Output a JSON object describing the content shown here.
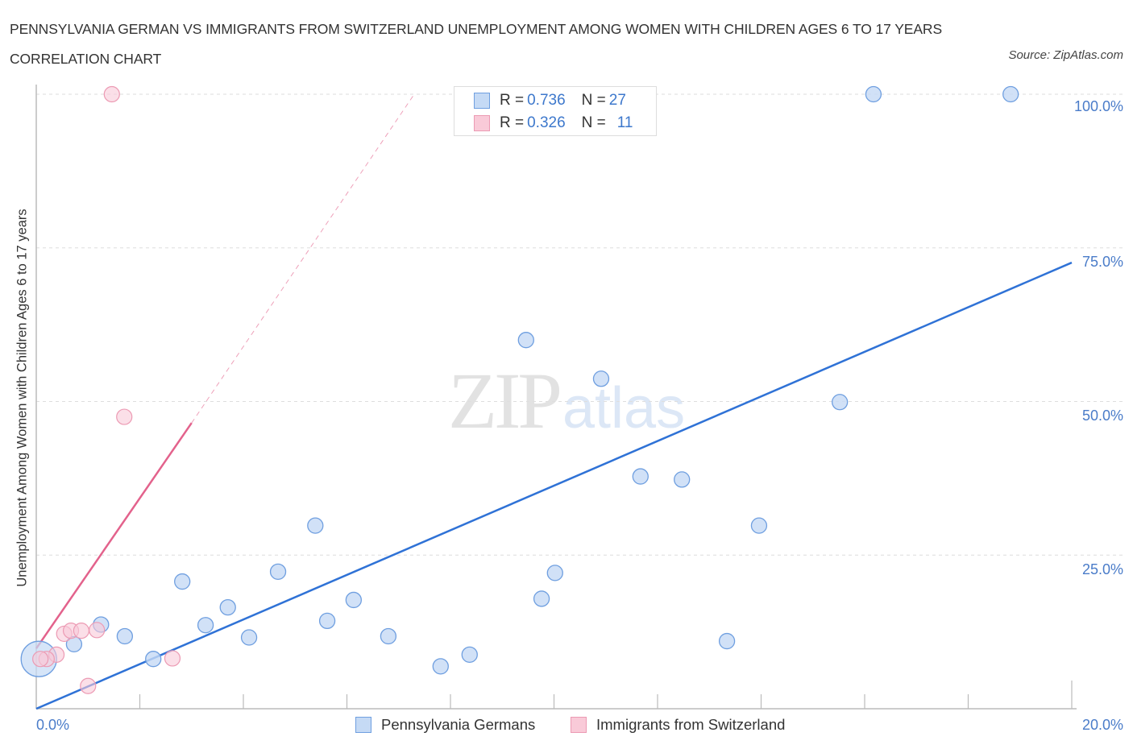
{
  "title": "PENNSYLVANIA GERMAN VS IMMIGRANTS FROM SWITZERLAND UNEMPLOYMENT AMONG WOMEN WITH CHILDREN AGES 6 TO 17 YEARS CORRELATION CHART",
  "source": "Source: ZipAtlas.com",
  "watermark": {
    "zip": "ZIP",
    "atlas": "atlas"
  },
  "legend_top": {
    "rows": [
      {
        "r_label": "R = ",
        "r_value": "0.736",
        "n_label": "N = ",
        "n_value": "27"
      },
      {
        "r_label": "R = ",
        "r_value": "0.326",
        "n_label": "N = ",
        "n_value": "11"
      }
    ]
  },
  "legend_bottom": [
    {
      "label": "Pennsylvania Germans"
    },
    {
      "label": "Immigrants from Switzerland"
    }
  ],
  "colors": {
    "blue_fill": "#c5daf5",
    "blue_stroke": "#6f9fe0",
    "blue_line": "#2f72d6",
    "pink_fill": "#f9cad8",
    "pink_stroke": "#ec9ab3",
    "pink_line": "#e3628c",
    "tick_label": "#4a7cc9"
  },
  "chart_data": {
    "type": "scatter",
    "title": "PENNSYLVANIA GERMAN VS IMMIGRANTS FROM SWITZERLAND UNEMPLOYMENT AMONG WOMEN WITH CHILDREN AGES 6 TO 17 YEARS CORRELATION CHART",
    "xlabel": "",
    "ylabel": "Unemployment Among Women with Children Ages 6 to 17 years",
    "xlim": [
      0,
      20
    ],
    "ylim": [
      0,
      100
    ],
    "x_tick_labels": [
      "0.0%",
      "20.0%"
    ],
    "y_tick_labels": [
      "100.0%",
      "75.0%",
      "50.0%",
      "25.0%"
    ],
    "y_ticks": [
      100,
      75,
      50,
      25
    ],
    "grid": "horizontal dashed",
    "legend_position": "bottom",
    "series": [
      {
        "name": "Pennsylvania Germans",
        "R": 0.736,
        "N": 27,
        "points": [
          [
            16.17,
            100.0
          ],
          [
            18.82,
            100.0
          ],
          [
            9.46,
            60.0
          ],
          [
            10.91,
            53.7
          ],
          [
            15.52,
            49.9
          ],
          [
            11.67,
            37.8
          ],
          [
            12.47,
            37.3
          ],
          [
            5.39,
            29.8
          ],
          [
            13.96,
            29.8
          ],
          [
            2.82,
            20.7
          ],
          [
            4.67,
            22.3
          ],
          [
            10.02,
            22.1
          ],
          [
            9.76,
            17.9
          ],
          [
            6.13,
            17.7
          ],
          [
            3.7,
            16.5
          ],
          [
            5.62,
            14.3
          ],
          [
            3.27,
            13.6
          ],
          [
            1.25,
            13.7
          ],
          [
            1.71,
            11.8
          ],
          [
            4.11,
            11.6
          ],
          [
            6.8,
            11.8
          ],
          [
            13.34,
            11.0
          ],
          [
            0.73,
            10.5
          ],
          [
            2.26,
            8.1
          ],
          [
            8.37,
            8.8
          ],
          [
            7.81,
            6.9
          ],
          [
            0.05,
            8.1
          ]
        ],
        "trend": {
          "x": [
            0,
            20
          ],
          "y": [
            0.0,
            72.6
          ]
        }
      },
      {
        "name": "Immigrants from Switzerland",
        "R": 0.326,
        "N": 11,
        "points": [
          [
            1.46,
            100.0
          ],
          [
            1.7,
            47.5
          ],
          [
            0.54,
            12.2
          ],
          [
            0.67,
            12.7
          ],
          [
            0.87,
            12.7
          ],
          [
            1.17,
            12.8
          ],
          [
            0.39,
            8.8
          ],
          [
            0.2,
            8.1
          ],
          [
            2.63,
            8.2
          ],
          [
            1.0,
            3.7
          ],
          [
            0.08,
            8.1
          ]
        ],
        "trend": {
          "x": [
            0,
            3.0,
            7.3
          ],
          "y": [
            9.8,
            46.5,
            100.0
          ],
          "solid_until_x": 3.0
        }
      }
    ]
  }
}
